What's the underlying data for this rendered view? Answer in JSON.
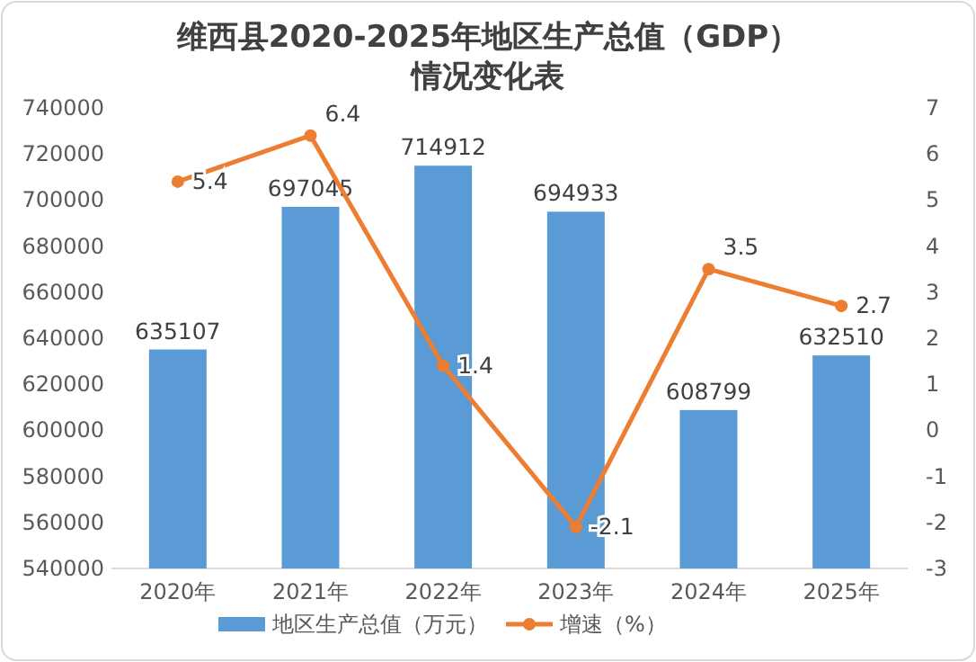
{
  "chart_data": {
    "type": "bar",
    "title": "维西县2020-2025年地区生产总值（GDP）情况变化表",
    "categories": [
      "2020年",
      "2021年",
      "2022年",
      "2023年",
      "2024年",
      "2025年"
    ],
    "series": [
      {
        "name": "地区生产总值（万元）",
        "color": "#5b9bd5",
        "values": [
          635107,
          697045,
          714912,
          694933,
          608799,
          632510
        ]
      },
      {
        "name": "增速（%）",
        "type": "line",
        "axis": "y2",
        "color": "#ed7d31",
        "marker": "circle",
        "values": [
          5.4,
          6.4,
          1.4,
          -2.1,
          3.5,
          2.7
        ]
      }
    ],
    "ylim": [
      540000,
      740000
    ],
    "yticks": [
      540000,
      560000,
      580000,
      600000,
      620000,
      640000,
      660000,
      680000,
      700000,
      720000,
      740000
    ],
    "y2lim": [
      -3,
      7
    ],
    "y2ticks": [
      -3,
      -2,
      -1,
      0,
      1,
      2,
      3,
      4,
      5,
      6,
      7
    ],
    "data_labels": true,
    "legend": "bottom",
    "grid": false
  }
}
